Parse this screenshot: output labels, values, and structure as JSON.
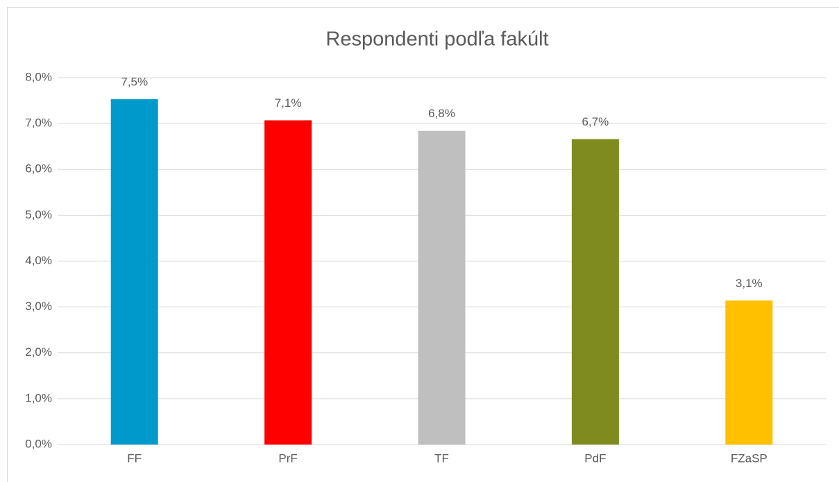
{
  "chart_data": {
    "type": "bar",
    "title": "Respondenti podľa fakúlt",
    "categories": [
      "FF",
      "PrF",
      "TF",
      "PdF",
      "FZaSP"
    ],
    "values": [
      7.53,
      7.07,
      6.84,
      6.66,
      3.14
    ],
    "value_labels": [
      "7,5%",
      "7,1%",
      "6,8%",
      "6,7%",
      "3,1%"
    ],
    "colors": [
      "#0099cc",
      "#ff0000",
      "#bfbfbf",
      "#7f8b1f",
      "#ffc000"
    ],
    "ylim": [
      0,
      8
    ],
    "yticks": [
      {
        "value": 0,
        "label": "0,0%"
      },
      {
        "value": 1,
        "label": "1,0%"
      },
      {
        "value": 2,
        "label": "2,0%"
      },
      {
        "value": 3,
        "label": "3,0%"
      },
      {
        "value": 4,
        "label": "4,0%"
      },
      {
        "value": 5,
        "label": "5,0%"
      },
      {
        "value": 6,
        "label": "6,0%"
      },
      {
        "value": 7,
        "label": "7,0%"
      },
      {
        "value": 8,
        "label": "8,0%"
      }
    ],
    "grid": true
  }
}
